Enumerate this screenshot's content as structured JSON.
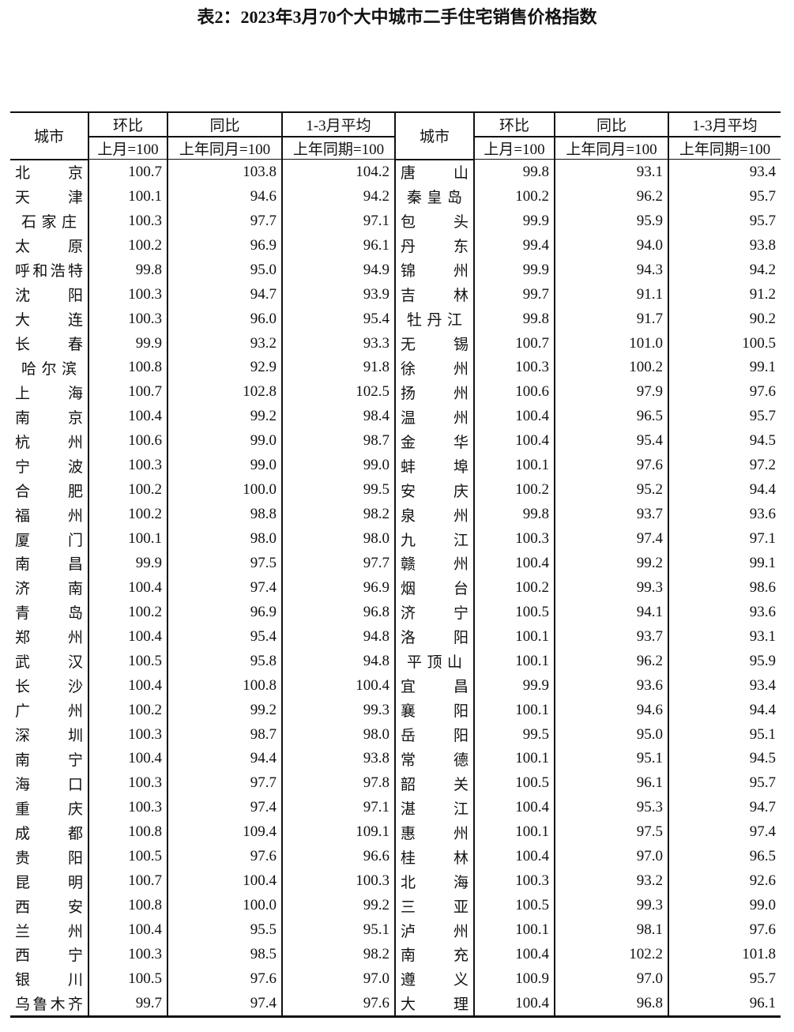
{
  "title": "表2：2023年3月70个大中城市二手住宅销售价格指数",
  "headers": {
    "city": "城市",
    "mom": "环比",
    "mom_base": "上月=100",
    "yoy": "同比",
    "yoy_base": "上年同月=100",
    "avg": "1-3月平均",
    "avg_base": "上年同期=100"
  },
  "left": [
    [
      "北京",
      "100.7",
      "103.8",
      "104.2"
    ],
    [
      "天津",
      "100.1",
      "94.6",
      "94.2"
    ],
    [
      "石家庄",
      "100.3",
      "97.7",
      "97.1"
    ],
    [
      "太原",
      "100.2",
      "96.9",
      "96.1"
    ],
    [
      "呼和浩特",
      "99.8",
      "95.0",
      "94.9"
    ],
    [
      "沈阳",
      "100.3",
      "94.7",
      "93.9"
    ],
    [
      "大连",
      "100.3",
      "96.0",
      "95.4"
    ],
    [
      "长春",
      "99.9",
      "93.2",
      "93.3"
    ],
    [
      "哈尔滨",
      "100.8",
      "92.9",
      "91.8"
    ],
    [
      "上海",
      "100.7",
      "102.8",
      "102.5"
    ],
    [
      "南京",
      "100.4",
      "99.2",
      "98.4"
    ],
    [
      "杭州",
      "100.6",
      "99.0",
      "98.7"
    ],
    [
      "宁波",
      "100.3",
      "99.0",
      "99.0"
    ],
    [
      "合肥",
      "100.2",
      "100.0",
      "99.5"
    ],
    [
      "福州",
      "100.2",
      "98.8",
      "98.2"
    ],
    [
      "厦门",
      "100.1",
      "98.0",
      "98.0"
    ],
    [
      "南昌",
      "99.9",
      "97.5",
      "97.7"
    ],
    [
      "济南",
      "100.4",
      "97.4",
      "96.9"
    ],
    [
      "青岛",
      "100.2",
      "96.9",
      "96.8"
    ],
    [
      "郑州",
      "100.4",
      "95.4",
      "94.8"
    ],
    [
      "武汉",
      "100.5",
      "95.8",
      "94.8"
    ],
    [
      "长沙",
      "100.4",
      "100.8",
      "100.4"
    ],
    [
      "广州",
      "100.2",
      "99.2",
      "99.3"
    ],
    [
      "深圳",
      "100.3",
      "98.7",
      "98.0"
    ],
    [
      "南宁",
      "100.4",
      "94.4",
      "93.8"
    ],
    [
      "海口",
      "100.3",
      "97.7",
      "97.8"
    ],
    [
      "重庆",
      "100.3",
      "97.4",
      "97.1"
    ],
    [
      "成都",
      "100.8",
      "109.4",
      "109.1"
    ],
    [
      "贵阳",
      "100.5",
      "97.6",
      "96.6"
    ],
    [
      "昆明",
      "100.7",
      "100.4",
      "100.3"
    ],
    [
      "西安",
      "100.8",
      "100.0",
      "99.2"
    ],
    [
      "兰州",
      "100.4",
      "95.5",
      "95.1"
    ],
    [
      "西宁",
      "100.3",
      "98.5",
      "98.2"
    ],
    [
      "银川",
      "100.5",
      "97.6",
      "97.0"
    ],
    [
      "乌鲁木齐",
      "99.7",
      "97.4",
      "97.6"
    ]
  ],
  "right": [
    [
      "唐山",
      "99.8",
      "93.1",
      "93.4"
    ],
    [
      "秦皇岛",
      "100.2",
      "96.2",
      "95.7"
    ],
    [
      "包头",
      "99.9",
      "95.9",
      "95.7"
    ],
    [
      "丹东",
      "99.4",
      "94.0",
      "93.8"
    ],
    [
      "锦州",
      "99.9",
      "94.3",
      "94.2"
    ],
    [
      "吉林",
      "99.7",
      "91.1",
      "91.2"
    ],
    [
      "牡丹江",
      "99.8",
      "91.7",
      "90.2"
    ],
    [
      "无锡",
      "100.7",
      "101.0",
      "100.5"
    ],
    [
      "徐州",
      "100.3",
      "100.2",
      "99.1"
    ],
    [
      "扬州",
      "100.6",
      "97.9",
      "97.6"
    ],
    [
      "温州",
      "100.4",
      "96.5",
      "95.7"
    ],
    [
      "金华",
      "100.4",
      "95.4",
      "94.5"
    ],
    [
      "蚌埠",
      "100.1",
      "97.6",
      "97.2"
    ],
    [
      "安庆",
      "100.2",
      "95.2",
      "94.4"
    ],
    [
      "泉州",
      "99.8",
      "93.7",
      "93.6"
    ],
    [
      "九江",
      "100.3",
      "97.4",
      "97.1"
    ],
    [
      "赣州",
      "100.4",
      "99.2",
      "99.1"
    ],
    [
      "烟台",
      "100.2",
      "99.3",
      "98.6"
    ],
    [
      "济宁",
      "100.5",
      "94.1",
      "93.6"
    ],
    [
      "洛阳",
      "100.1",
      "93.7",
      "93.1"
    ],
    [
      "平顶山",
      "100.1",
      "96.2",
      "95.9"
    ],
    [
      "宜昌",
      "99.9",
      "93.6",
      "93.4"
    ],
    [
      "襄阳",
      "100.1",
      "94.6",
      "94.4"
    ],
    [
      "岳阳",
      "99.5",
      "95.0",
      "95.1"
    ],
    [
      "常德",
      "100.1",
      "95.1",
      "94.5"
    ],
    [
      "韶关",
      "100.5",
      "96.1",
      "95.7"
    ],
    [
      "湛江",
      "100.4",
      "95.3",
      "94.7"
    ],
    [
      "惠州",
      "100.1",
      "97.5",
      "97.4"
    ],
    [
      "桂林",
      "100.4",
      "97.0",
      "96.5"
    ],
    [
      "北海",
      "100.3",
      "93.2",
      "92.6"
    ],
    [
      "三亚",
      "100.5",
      "99.3",
      "99.0"
    ],
    [
      "泸州",
      "100.1",
      "98.1",
      "97.6"
    ],
    [
      "南充",
      "100.4",
      "102.2",
      "101.8"
    ],
    [
      "遵义",
      "100.9",
      "97.0",
      "95.7"
    ],
    [
      "大理",
      "100.4",
      "96.8",
      "96.1"
    ]
  ]
}
